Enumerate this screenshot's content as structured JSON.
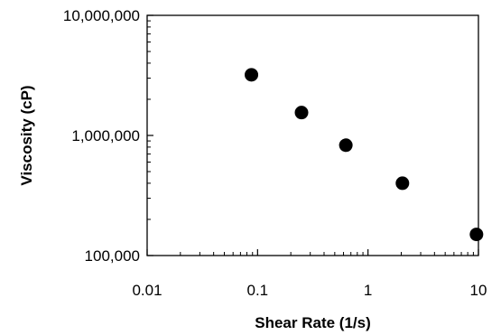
{
  "chart_data": {
    "type": "scatter",
    "title": "",
    "xlabel": "Shear Rate (1/s)",
    "ylabel": "Viscosity (cP)",
    "xscale": "log",
    "yscale": "log",
    "xlim": [
      0.01,
      10
    ],
    "ylim": [
      100000,
      10000000
    ],
    "grid": false,
    "legend": "none",
    "x_tick_labels": [
      "0.01",
      "0.1",
      "1",
      "10"
    ],
    "y_tick_labels": [
      "100,000",
      "1,000,000",
      "10,000,000"
    ],
    "series": [
      {
        "marker": "circle",
        "color": "#000000",
        "x": [
          0.088,
          0.25,
          0.63,
          2.05,
          9.6
        ],
        "y": [
          3200000,
          1550000,
          830000,
          400000,
          150000
        ]
      }
    ]
  }
}
